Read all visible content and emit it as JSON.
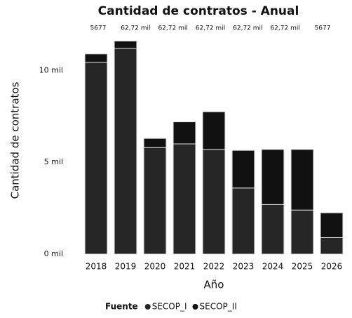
{
  "chart_data": {
    "type": "stacked_bar",
    "title": "Cantidad de contratos - Anual",
    "x_label": "Año",
    "y_label": "Cantidad de contratos",
    "legend_title": "Fuente",
    "annotations": [
      "5677",
      "62,72 mil",
      "62,72 mil",
      "62,72 mil",
      "62,72 mil",
      "62,72 mil",
      "5677"
    ],
    "categories": [
      "2018",
      "2019",
      "2020",
      "2021",
      "2022",
      "2023",
      "2024",
      "2025",
      "2026"
    ],
    "series": [
      {
        "name": "SECOP_I",
        "color": "#262626",
        "values": [
          10450,
          11200,
          5800,
          6000,
          5700,
          3600,
          2700,
          2400,
          900
        ]
      },
      {
        "name": "SECOP_II",
        "color": "#111111",
        "values": [
          450,
          400,
          500,
          1200,
          2050,
          2050,
          3000,
          3300,
          1350
        ]
      }
    ],
    "ylim": [
      0,
      12000
    ],
    "yticks": [
      {
        "value": 0,
        "label": "0 mil"
      },
      {
        "value": 5000,
        "label": "5 mil"
      },
      {
        "value": 10000,
        "label": "10 mil"
      }
    ]
  }
}
